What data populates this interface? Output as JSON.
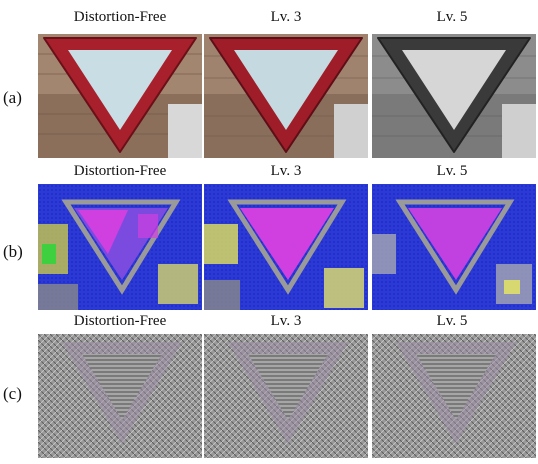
{
  "rows": [
    {
      "label": "(a)",
      "type": "photo",
      "titles": [
        "Distortion-Free",
        "Lv. 3",
        "Lv. 5"
      ]
    },
    {
      "label": "(b)",
      "type": "feature-map",
      "titles": [
        "Distortion-Free",
        "Lv. 3",
        "Lv. 5"
      ]
    },
    {
      "label": "(c)",
      "type": "texture-map",
      "titles": [
        "Distortion-Free",
        "Lv. 3",
        "Lv. 5"
      ]
    }
  ],
  "colors": {
    "sign_border": "#a8202c",
    "sign_fill": "#c8dde4",
    "map_blue": "#2a39d8",
    "map_magenta": "#d040e0",
    "texture_gray": "#9a9a9a"
  }
}
